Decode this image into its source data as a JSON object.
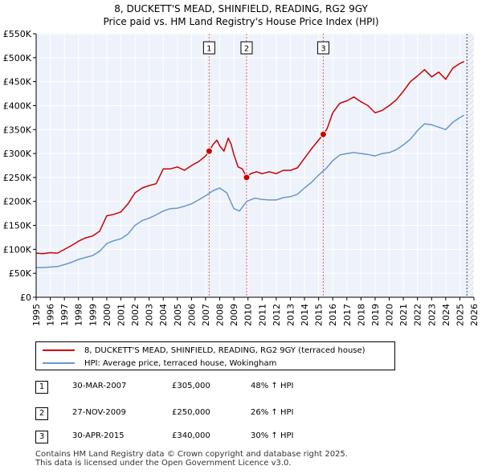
{
  "chart_data": {
    "type": "line",
    "title": "8, DUCKETT'S MEAD, SHINFIELD, READING, RG2 9GY",
    "subtitle": "Price paid vs. HM Land Registry's House Price Index (HPI)",
    "xlim": [
      1995,
      2026
    ],
    "ylim": [
      0,
      550000
    ],
    "x_ticks": [
      "1995",
      "1996",
      "1997",
      "1998",
      "1999",
      "2000",
      "2001",
      "2002",
      "2003",
      "2004",
      "2005",
      "2006",
      "2007",
      "2008",
      "2009",
      "2010",
      "2011",
      "2012",
      "2013",
      "2014",
      "2015",
      "2016",
      "2017",
      "2018",
      "2019",
      "2020",
      "2021",
      "2022",
      "2023",
      "2024",
      "2025",
      "2026"
    ],
    "y_ticks": [
      {
        "value": 0,
        "label": "£0"
      },
      {
        "value": 50000,
        "label": "£50K"
      },
      {
        "value": 100000,
        "label": "£100K"
      },
      {
        "value": 150000,
        "label": "£150K"
      },
      {
        "value": 200000,
        "label": "£200K"
      },
      {
        "value": 250000,
        "label": "£250K"
      },
      {
        "value": 300000,
        "label": "£300K"
      },
      {
        "value": 350000,
        "label": "£350K"
      },
      {
        "value": 400000,
        "label": "£400K"
      },
      {
        "value": 450000,
        "label": "£450K"
      },
      {
        "value": 500000,
        "label": "£500K"
      },
      {
        "value": 550000,
        "label": "£550K"
      }
    ],
    "series": [
      {
        "name": "8, DUCKETT'S MEAD, SHINFIELD, READING, RG2 9GY (terraced house)",
        "color": "#cc0000",
        "points": [
          [
            1995.0,
            92000
          ],
          [
            1995.5,
            91000
          ],
          [
            1996.0,
            93000
          ],
          [
            1996.5,
            92000
          ],
          [
            1997.0,
            100000
          ],
          [
            1997.5,
            108000
          ],
          [
            1998.0,
            117000
          ],
          [
            1998.5,
            124000
          ],
          [
            1999.0,
            128000
          ],
          [
            1999.5,
            138000
          ],
          [
            2000.0,
            170000
          ],
          [
            2000.5,
            173000
          ],
          [
            2001.0,
            178000
          ],
          [
            2001.5,
            195000
          ],
          [
            2002.0,
            218000
          ],
          [
            2002.5,
            228000
          ],
          [
            2003.0,
            233000
          ],
          [
            2003.5,
            237000
          ],
          [
            2004.0,
            268000
          ],
          [
            2004.5,
            268000
          ],
          [
            2005.0,
            272000
          ],
          [
            2005.5,
            265000
          ],
          [
            2006.0,
            275000
          ],
          [
            2006.5,
            283000
          ],
          [
            2007.0,
            295000
          ],
          [
            2007.25,
            305000
          ],
          [
            2007.5,
            318000
          ],
          [
            2007.8,
            328000
          ],
          [
            2008.0,
            316000
          ],
          [
            2008.3,
            305000
          ],
          [
            2008.6,
            332000
          ],
          [
            2008.8,
            320000
          ],
          [
            2009.0,
            298000
          ],
          [
            2009.3,
            272000
          ],
          [
            2009.6,
            268000
          ],
          [
            2009.9,
            250000
          ],
          [
            2010.2,
            258000
          ],
          [
            2010.6,
            262000
          ],
          [
            2011.0,
            258000
          ],
          [
            2011.5,
            262000
          ],
          [
            2012.0,
            258000
          ],
          [
            2012.5,
            265000
          ],
          [
            2013.0,
            265000
          ],
          [
            2013.5,
            270000
          ],
          [
            2014.0,
            290000
          ],
          [
            2014.5,
            310000
          ],
          [
            2015.0,
            328000
          ],
          [
            2015.33,
            340000
          ],
          [
            2015.6,
            352000
          ],
          [
            2016.0,
            385000
          ],
          [
            2016.5,
            405000
          ],
          [
            2017.0,
            410000
          ],
          [
            2017.5,
            418000
          ],
          [
            2018.0,
            408000
          ],
          [
            2018.5,
            400000
          ],
          [
            2019.0,
            385000
          ],
          [
            2019.5,
            390000
          ],
          [
            2020.0,
            400000
          ],
          [
            2020.5,
            412000
          ],
          [
            2021.0,
            430000
          ],
          [
            2021.5,
            450000
          ],
          [
            2022.0,
            462000
          ],
          [
            2022.5,
            475000
          ],
          [
            2023.0,
            460000
          ],
          [
            2023.5,
            470000
          ],
          [
            2024.0,
            455000
          ],
          [
            2024.5,
            478000
          ],
          [
            2025.0,
            488000
          ],
          [
            2025.3,
            492000
          ]
        ]
      },
      {
        "name": "HPI: Average price, terraced house, Wokingham",
        "color": "#6699cc",
        "points": [
          [
            1995.0,
            62000
          ],
          [
            1995.5,
            62000
          ],
          [
            1996.0,
            63000
          ],
          [
            1996.5,
            64000
          ],
          [
            1997.0,
            68000
          ],
          [
            1997.5,
            73000
          ],
          [
            1998.0,
            79000
          ],
          [
            1998.5,
            83000
          ],
          [
            1999.0,
            87000
          ],
          [
            1999.5,
            96000
          ],
          [
            2000.0,
            112000
          ],
          [
            2000.5,
            118000
          ],
          [
            2001.0,
            122000
          ],
          [
            2001.5,
            132000
          ],
          [
            2002.0,
            150000
          ],
          [
            2002.5,
            160000
          ],
          [
            2003.0,
            165000
          ],
          [
            2003.5,
            172000
          ],
          [
            2004.0,
            180000
          ],
          [
            2004.5,
            185000
          ],
          [
            2005.0,
            186000
          ],
          [
            2005.5,
            190000
          ],
          [
            2006.0,
            195000
          ],
          [
            2006.5,
            203000
          ],
          [
            2007.0,
            212000
          ],
          [
            2007.5,
            222000
          ],
          [
            2008.0,
            228000
          ],
          [
            2008.5,
            218000
          ],
          [
            2009.0,
            185000
          ],
          [
            2009.4,
            180000
          ],
          [
            2009.9,
            200000
          ],
          [
            2010.5,
            207000
          ],
          [
            2011.0,
            204000
          ],
          [
            2011.5,
            203000
          ],
          [
            2012.0,
            203000
          ],
          [
            2012.5,
            208000
          ],
          [
            2013.0,
            210000
          ],
          [
            2013.5,
            215000
          ],
          [
            2014.0,
            228000
          ],
          [
            2014.5,
            240000
          ],
          [
            2015.0,
            255000
          ],
          [
            2015.5,
            268000
          ],
          [
            2016.0,
            285000
          ],
          [
            2016.5,
            297000
          ],
          [
            2017.0,
            300000
          ],
          [
            2017.5,
            302000
          ],
          [
            2018.0,
            300000
          ],
          [
            2018.5,
            298000
          ],
          [
            2019.0,
            295000
          ],
          [
            2019.5,
            300000
          ],
          [
            2020.0,
            302000
          ],
          [
            2020.5,
            308000
          ],
          [
            2021.0,
            318000
          ],
          [
            2021.5,
            330000
          ],
          [
            2022.0,
            348000
          ],
          [
            2022.5,
            362000
          ],
          [
            2023.0,
            360000
          ],
          [
            2023.5,
            355000
          ],
          [
            2024.0,
            350000
          ],
          [
            2024.5,
            365000
          ],
          [
            2025.0,
            375000
          ],
          [
            2025.3,
            380000
          ]
        ]
      }
    ],
    "sales": [
      {
        "marker": "1",
        "x": 2007.25,
        "price": 305000,
        "date": "30-MAR-2007",
        "price_label": "£305,000",
        "hpi_label": "48% ↑ HPI"
      },
      {
        "marker": "2",
        "x": 2009.9,
        "price": 250000,
        "date": "27-NOV-2009",
        "price_label": "£250,000",
        "hpi_label": "26% ↑ HPI"
      },
      {
        "marker": "3",
        "x": 2015.33,
        "price": 340000,
        "date": "30-APR-2015",
        "price_label": "£340,000",
        "hpi_label": "30% ↑ HPI"
      }
    ],
    "forecast_start": 2025.5,
    "grid": true
  },
  "legend": {
    "property_label": "8, DUCKETT'S MEAD, SHINFIELD, READING, RG2 9GY (terraced house)",
    "hpi_label": "HPI: Average price, terraced house, Wokingham"
  },
  "footer": {
    "line1": "Contains HM Land Registry data © Crown copyright and database right 2025.",
    "line2": "This data is licensed under the Open Government Licence v3.0."
  }
}
